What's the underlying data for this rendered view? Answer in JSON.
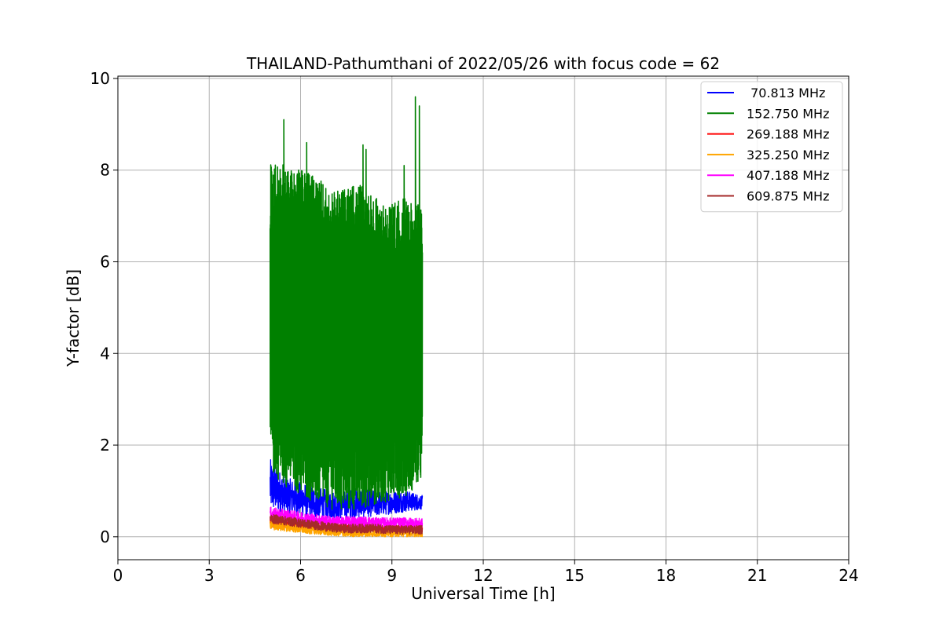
{
  "chart_data": {
    "type": "line",
    "title": "THAILAND-Pathumthani of 2022/05/26 with focus code = 62",
    "xlabel": "Universal Time [h]",
    "ylabel": "Y-factor [dB]",
    "xlim": [
      0,
      24
    ],
    "ylim": [
      -0.5,
      10.05
    ],
    "xticks": [
      0,
      3,
      6,
      9,
      12,
      15,
      18,
      21,
      24
    ],
    "yticks": [
      0,
      2,
      4,
      6,
      8,
      10
    ],
    "grid": true,
    "legend_position": "top-right",
    "series": [
      {
        "name": " 70.813 MHz",
        "color": "#0000ff",
        "x_range": [
          5.0,
          10.0
        ],
        "y_low": [
          0.55,
          0.5,
          0.45,
          0.4,
          0.38,
          0.4,
          0.42,
          0.45,
          0.5,
          0.55,
          0.6
        ],
        "y_high": [
          1.7,
          1.3,
          1.2,
          1.1,
          1.0,
          1.0,
          1.1,
          1.0,
          1.0,
          1.0,
          0.9
        ]
      },
      {
        "name": "152.750 MHz",
        "color": "#008000",
        "x_range": [
          5.0,
          10.0
        ],
        "y_low": [
          1.4,
          1.1,
          0.9,
          0.7,
          0.6,
          0.5,
          0.6,
          0.7,
          0.8,
          0.9,
          1.2
        ],
        "y_high": [
          8.2,
          8.1,
          8.0,
          7.9,
          7.5,
          7.6,
          7.7,
          7.4,
          7.3,
          7.4,
          7.2
        ],
        "spikes": [
          {
            "x": 5.45,
            "y": 9.1
          },
          {
            "x": 6.2,
            "y": 8.6
          },
          {
            "x": 8.05,
            "y": 8.55
          },
          {
            "x": 8.15,
            "y": 8.45
          },
          {
            "x": 9.4,
            "y": 8.1
          },
          {
            "x": 9.77,
            "y": 9.6
          },
          {
            "x": 9.9,
            "y": 9.4
          }
        ]
      },
      {
        "name": "269.188 MHz",
        "color": "#ff0000",
        "x_range": [
          5.0,
          10.0
        ],
        "y_low": [
          0.2,
          0.18,
          0.15,
          0.12,
          0.1,
          0.1,
          0.1,
          0.1,
          0.1,
          0.1,
          0.1
        ],
        "y_high": [
          0.45,
          0.4,
          0.35,
          0.3,
          0.28,
          0.25,
          0.25,
          0.25,
          0.25,
          0.25,
          0.25
        ]
      },
      {
        "name": "325.250 MHz",
        "color": "#ffa500",
        "x_range": [
          5.0,
          10.0
        ],
        "y_low": [
          0.15,
          0.12,
          0.08,
          0.05,
          0.02,
          0.0,
          0.0,
          0.0,
          0.0,
          0.0,
          0.0
        ],
        "y_high": [
          0.35,
          0.3,
          0.25,
          0.2,
          0.18,
          0.15,
          0.15,
          0.15,
          0.15,
          0.15,
          0.15
        ]
      },
      {
        "name": "407.188 MHz",
        "color": "#ff00ff",
        "x_range": [
          5.0,
          10.0
        ],
        "y_low": [
          0.35,
          0.32,
          0.28,
          0.25,
          0.22,
          0.2,
          0.2,
          0.2,
          0.2,
          0.2,
          0.2
        ],
        "y_high": [
          0.65,
          0.6,
          0.55,
          0.5,
          0.45,
          0.45,
          0.45,
          0.42,
          0.42,
          0.42,
          0.4
        ]
      },
      {
        "name": "609.875 MHz",
        "color": "#a52a2a",
        "x_range": [
          5.0,
          10.0
        ],
        "y_low": [
          0.3,
          0.25,
          0.2,
          0.15,
          0.1,
          0.08,
          0.08,
          0.08,
          0.05,
          0.05,
          0.05
        ],
        "y_high": [
          0.5,
          0.45,
          0.4,
          0.35,
          0.3,
          0.28,
          0.28,
          0.28,
          0.25,
          0.25,
          0.25
        ]
      }
    ]
  }
}
